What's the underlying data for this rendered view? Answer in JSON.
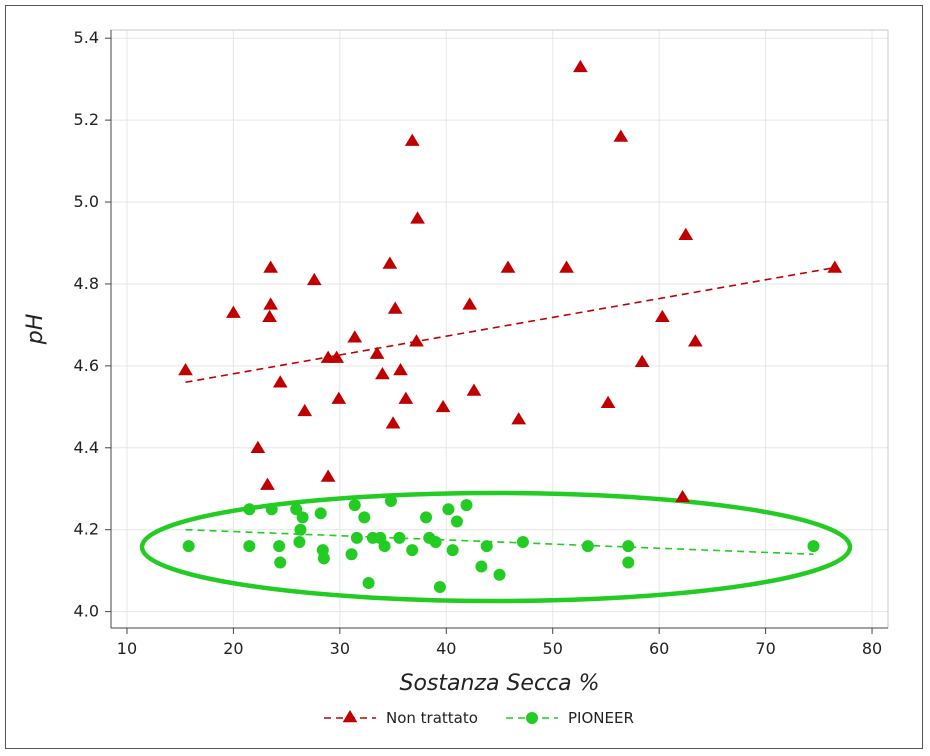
{
  "chart_data": {
    "type": "scatter",
    "xlabel": "Sostanza Secca %",
    "ylabel": "pH",
    "xlim": [
      8.5,
      81.5
    ],
    "ylim": [
      3.96,
      5.42
    ],
    "x_ticks": [
      "10",
      "20",
      "30",
      "40",
      "50",
      "60",
      "70",
      "80"
    ],
    "y_ticks": [
      "4.0",
      "4.2",
      "4.4",
      "4.6",
      "4.8",
      "5.0",
      "5.2",
      "5.4"
    ],
    "grid": true,
    "legend_position": "bottom",
    "series": [
      {
        "name": "Non trattato",
        "marker": "triangle",
        "color": "#c00000",
        "trend": [
          [
            15.5,
            4.56
          ],
          [
            76.5,
            4.84
          ]
        ],
        "points": [
          [
            15.5,
            4.59
          ],
          [
            20.0,
            4.73
          ],
          [
            22.3,
            4.4
          ],
          [
            23.2,
            4.31
          ],
          [
            23.5,
            4.84
          ],
          [
            23.5,
            4.75
          ],
          [
            23.4,
            4.72
          ],
          [
            24.4,
            4.56
          ],
          [
            26.7,
            4.49
          ],
          [
            27.6,
            4.81
          ],
          [
            28.9,
            4.62
          ],
          [
            28.9,
            4.33
          ],
          [
            29.7,
            4.62
          ],
          [
            29.9,
            4.52
          ],
          [
            31.4,
            4.67
          ],
          [
            33.5,
            4.63
          ],
          [
            34.0,
            4.58
          ],
          [
            34.7,
            4.85
          ],
          [
            35.0,
            4.46
          ],
          [
            35.2,
            4.74
          ],
          [
            35.7,
            4.59
          ],
          [
            36.2,
            4.52
          ],
          [
            36.8,
            5.15
          ],
          [
            37.3,
            4.96
          ],
          [
            37.2,
            4.66
          ],
          [
            39.7,
            4.5
          ],
          [
            42.2,
            4.75
          ],
          [
            42.6,
            4.54
          ],
          [
            45.8,
            4.84
          ],
          [
            46.8,
            4.47
          ],
          [
            51.3,
            4.84
          ],
          [
            52.6,
            5.33
          ],
          [
            55.2,
            4.51
          ],
          [
            56.4,
            5.16
          ],
          [
            58.4,
            4.61
          ],
          [
            60.3,
            4.72
          ],
          [
            62.2,
            4.28
          ],
          [
            62.5,
            4.92
          ],
          [
            63.4,
            4.66
          ],
          [
            76.5,
            4.84
          ]
        ]
      },
      {
        "name": "PIONEER",
        "marker": "circle",
        "color": "#22cc22",
        "trend": [
          [
            15.5,
            4.2
          ],
          [
            74.5,
            4.14
          ]
        ],
        "points": [
          [
            15.8,
            4.16
          ],
          [
            21.5,
            4.25
          ],
          [
            21.5,
            4.16
          ],
          [
            23.6,
            4.25
          ],
          [
            24.3,
            4.16
          ],
          [
            24.4,
            4.12
          ],
          [
            25.9,
            4.25
          ],
          [
            26.2,
            4.17
          ],
          [
            26.3,
            4.2
          ],
          [
            26.5,
            4.23
          ],
          [
            28.2,
            4.24
          ],
          [
            28.4,
            4.15
          ],
          [
            28.5,
            4.13
          ],
          [
            31.1,
            4.14
          ],
          [
            31.4,
            4.26
          ],
          [
            31.6,
            4.18
          ],
          [
            32.3,
            4.23
          ],
          [
            32.7,
            4.07
          ],
          [
            33.1,
            4.18
          ],
          [
            33.8,
            4.18
          ],
          [
            34.2,
            4.16
          ],
          [
            34.8,
            4.27
          ],
          [
            35.6,
            4.18
          ],
          [
            36.8,
            4.15
          ],
          [
            38.1,
            4.23
          ],
          [
            38.4,
            4.18
          ],
          [
            39.0,
            4.17
          ],
          [
            39.4,
            4.06
          ],
          [
            40.2,
            4.25
          ],
          [
            40.6,
            4.15
          ],
          [
            41.0,
            4.22
          ],
          [
            41.9,
            4.26
          ],
          [
            43.3,
            4.11
          ],
          [
            43.8,
            4.16
          ],
          [
            45.0,
            4.09
          ],
          [
            47.2,
            4.17
          ],
          [
            53.3,
            4.16
          ],
          [
            57.1,
            4.16
          ],
          [
            57.1,
            4.12
          ],
          [
            74.5,
            4.16
          ]
        ]
      }
    ]
  }
}
